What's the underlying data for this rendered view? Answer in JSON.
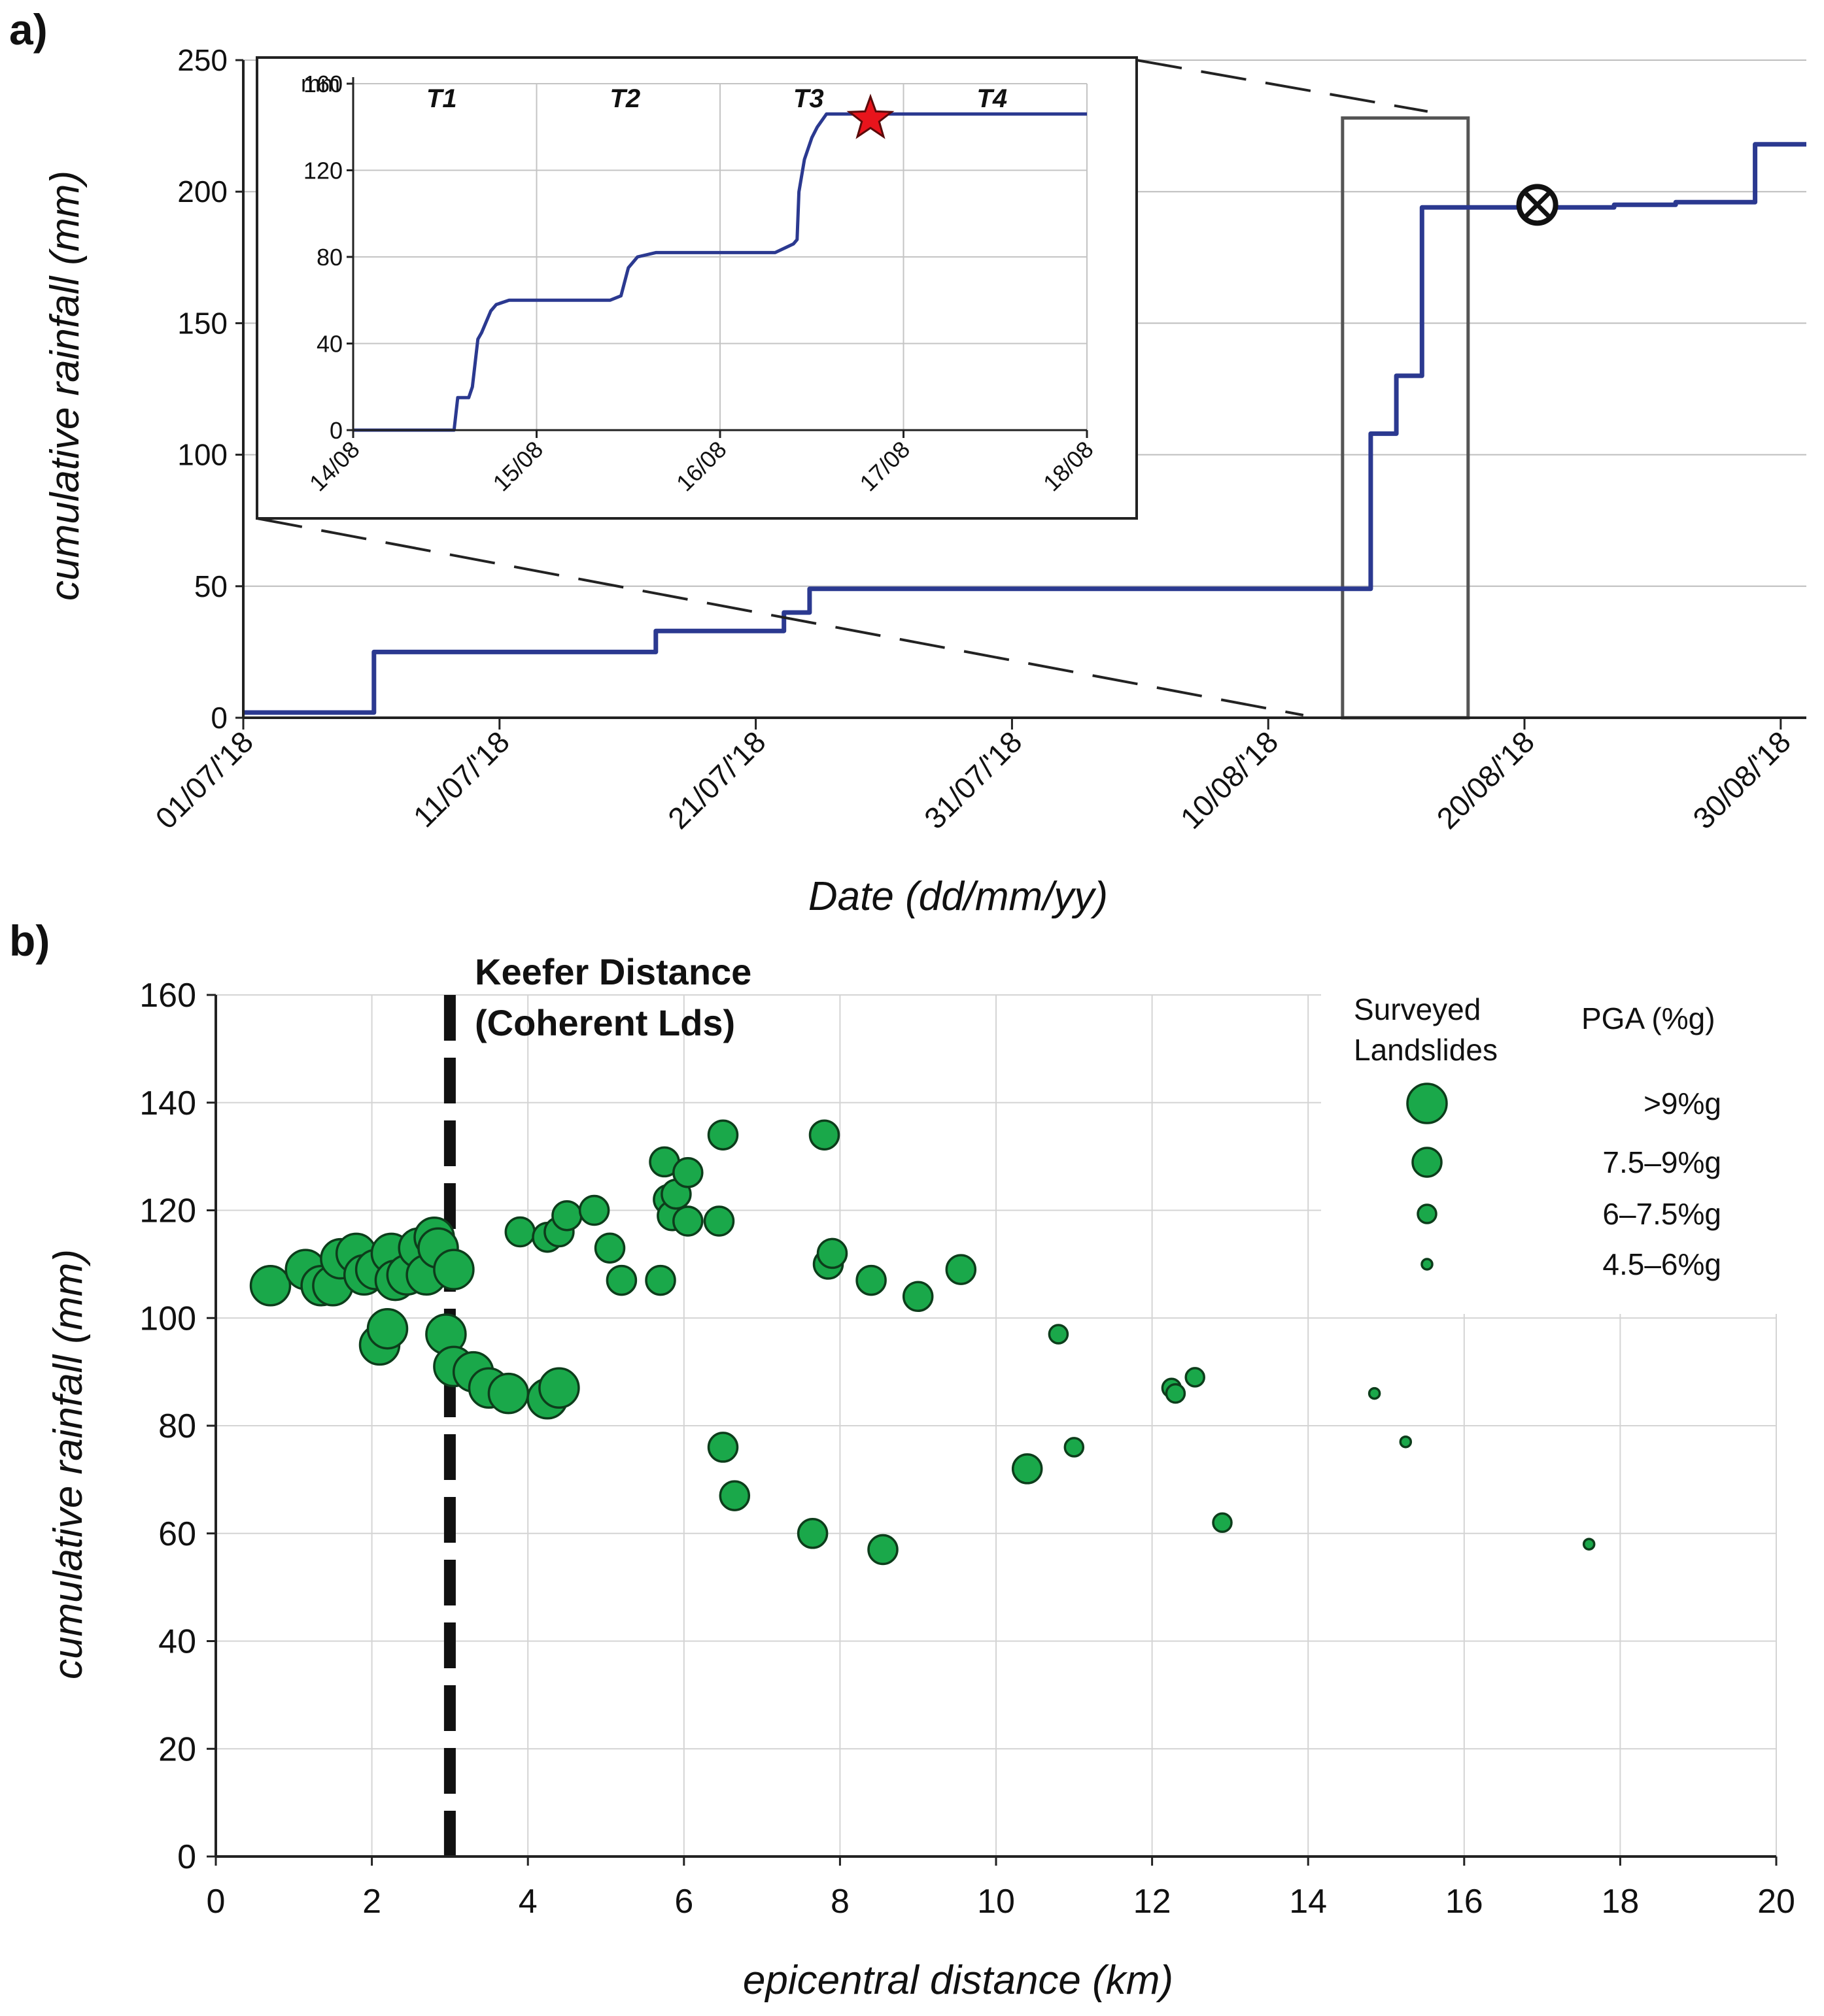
{
  "chart_data": [
    {
      "panel_label": "a)",
      "type": "line",
      "xlabel": "Date (dd/mm/yy)",
      "ylabel": "cumulative rainfall (mm)",
      "ylim": [
        0,
        250
      ],
      "yticks": [
        "0",
        "50",
        "100",
        "150",
        "200",
        "250"
      ],
      "x_range_days": [
        0,
        61
      ],
      "x_tick_days": [
        0,
        10,
        20,
        30,
        40,
        50,
        60
      ],
      "x_tick_labels": [
        "01/07/'18",
        "11/07/'18",
        "21/07/'18",
        "31/07/'18",
        "10/08/'18",
        "20/08/'18",
        "30/08/'18"
      ],
      "grid": "horizontal",
      "series": [
        {
          "name": "cumulative rainfall",
          "color": "#2b3990",
          "x": [
            0,
            5.1,
            5.1,
            16.1,
            16.1,
            21.1,
            21.1,
            22.1,
            22.1,
            44.0,
            44.0,
            45.0,
            45.0,
            46.0,
            46.0,
            53.5,
            53.5,
            55.9,
            55.9,
            59.0,
            59.0,
            61.0
          ],
          "y": [
            2,
            2,
            25,
            25,
            33,
            33,
            40,
            40,
            49,
            49,
            108,
            108,
            130,
            130,
            194,
            194,
            195,
            195,
            196,
            196,
            218,
            218
          ]
        }
      ],
      "highlight_box_days": [
        42.9,
        47.8
      ],
      "marker": {
        "symbol": "circled-x",
        "x": 50.5,
        "y": 195
      },
      "inset": {
        "ylabel": "mm",
        "ylim": [
          0,
          160
        ],
        "yticks": [
          "0",
          "40",
          "80",
          "120",
          "160"
        ],
        "x_range_days": [
          0,
          4
        ],
        "x_tick_labels": [
          "14/08",
          "15/08",
          "16/08",
          "17/08",
          "18/08"
        ],
        "periods": [
          "T1",
          "T2",
          "T3",
          "T4"
        ],
        "series": [
          {
            "name": "cumulative rainfall (zoom)",
            "color": "#2b3990",
            "x": [
              0,
              0.55,
              0.57,
              0.63,
              0.65,
              0.68,
              0.7,
              0.75,
              0.78,
              0.85,
              0.95,
              1.3,
              1.4,
              1.46,
              1.5,
              1.55,
              1.65,
              2.0,
              2.3,
              2.35,
              2.4,
              2.42,
              2.43,
              2.46,
              2.5,
              2.53,
              2.58,
              2.65,
              4.0
            ],
            "y": [
              0,
              0,
              15,
              15,
              20,
              42,
              45,
              55,
              58,
              60,
              60,
              60,
              60,
              62,
              75,
              80,
              82,
              82,
              82,
              84,
              86,
              88,
              110,
              125,
              135,
              140,
              146,
              146,
              146
            ]
          }
        ],
        "star": {
          "x": 2.82,
          "y": 145
        }
      }
    },
    {
      "panel_label": "b)",
      "type": "scatter",
      "xlabel": "epicentral distance (km)",
      "ylabel": "cumulative rainfall (mm)",
      "xlim": [
        0,
        20
      ],
      "ylim": [
        0,
        160
      ],
      "xticks": [
        "0",
        "2",
        "4",
        "6",
        "8",
        "10",
        "12",
        "14",
        "16",
        "18",
        "20"
      ],
      "yticks": [
        "0",
        "20",
        "40",
        "60",
        "80",
        "100",
        "120",
        "140",
        "160"
      ],
      "grid": "both",
      "vline": {
        "x": 3.0,
        "label_line1": "Keefer Distance",
        "label_line2": "(Coherent Lds)"
      },
      "legend": {
        "title_left_1": "Surveyed",
        "title_left_2": "Landslides",
        "title_right": "PGA (%g)",
        "entries": [
          {
            "label": ">9%g",
            "class": 4
          },
          {
            "label": "7.5–9%g",
            "class": 3
          },
          {
            "label": "6–7.5%g",
            "class": 2
          },
          {
            "label": "4.5–6%g",
            "class": 1
          }
        ]
      },
      "marker_color": "#1aa84a",
      "points": [
        {
          "x": 0.7,
          "y": 106,
          "c": 4
        },
        {
          "x": 1.15,
          "y": 109,
          "c": 4
        },
        {
          "x": 1.35,
          "y": 106,
          "c": 4
        },
        {
          "x": 1.5,
          "y": 106,
          "c": 4
        },
        {
          "x": 1.6,
          "y": 111,
          "c": 4
        },
        {
          "x": 1.8,
          "y": 112,
          "c": 4
        },
        {
          "x": 1.9,
          "y": 108,
          "c": 4
        },
        {
          "x": 2.05,
          "y": 109,
          "c": 4
        },
        {
          "x": 2.25,
          "y": 112,
          "c": 4
        },
        {
          "x": 2.3,
          "y": 107,
          "c": 4
        },
        {
          "x": 2.45,
          "y": 108,
          "c": 4
        },
        {
          "x": 2.6,
          "y": 113,
          "c": 4
        },
        {
          "x": 2.7,
          "y": 108,
          "c": 4
        },
        {
          "x": 2.8,
          "y": 115,
          "c": 4
        },
        {
          "x": 2.85,
          "y": 113,
          "c": 4
        },
        {
          "x": 3.05,
          "y": 109,
          "c": 4
        },
        {
          "x": 2.1,
          "y": 95,
          "c": 4
        },
        {
          "x": 2.2,
          "y": 98,
          "c": 4
        },
        {
          "x": 2.95,
          "y": 97,
          "c": 4
        },
        {
          "x": 3.05,
          "y": 91,
          "c": 4
        },
        {
          "x": 3.3,
          "y": 90,
          "c": 4
        },
        {
          "x": 3.5,
          "y": 87,
          "c": 4
        },
        {
          "x": 3.75,
          "y": 86,
          "c": 4
        },
        {
          "x": 4.25,
          "y": 85,
          "c": 4
        },
        {
          "x": 4.4,
          "y": 87,
          "c": 4
        },
        {
          "x": 3.9,
          "y": 116,
          "c": 3
        },
        {
          "x": 4.25,
          "y": 115,
          "c": 3
        },
        {
          "x": 4.4,
          "y": 116,
          "c": 3
        },
        {
          "x": 4.5,
          "y": 119,
          "c": 3
        },
        {
          "x": 4.85,
          "y": 120,
          "c": 3
        },
        {
          "x": 5.05,
          "y": 113,
          "c": 3
        },
        {
          "x": 5.2,
          "y": 107,
          "c": 3
        },
        {
          "x": 5.7,
          "y": 107,
          "c": 3
        },
        {
          "x": 5.75,
          "y": 129,
          "c": 3
        },
        {
          "x": 5.8,
          "y": 122,
          "c": 3
        },
        {
          "x": 5.85,
          "y": 119,
          "c": 3
        },
        {
          "x": 5.9,
          "y": 123,
          "c": 3
        },
        {
          "x": 6.05,
          "y": 127,
          "c": 3
        },
        {
          "x": 6.05,
          "y": 118,
          "c": 3
        },
        {
          "x": 6.5,
          "y": 134,
          "c": 3
        },
        {
          "x": 6.45,
          "y": 118,
          "c": 3
        },
        {
          "x": 6.5,
          "y": 76,
          "c": 3
        },
        {
          "x": 6.65,
          "y": 67,
          "c": 3
        },
        {
          "x": 7.65,
          "y": 60,
          "c": 3
        },
        {
          "x": 7.8,
          "y": 134,
          "c": 3
        },
        {
          "x": 7.85,
          "y": 110,
          "c": 3
        },
        {
          "x": 7.9,
          "y": 112,
          "c": 3
        },
        {
          "x": 8.4,
          "y": 107,
          "c": 3
        },
        {
          "x": 8.55,
          "y": 57,
          "c": 3
        },
        {
          "x": 9.0,
          "y": 104,
          "c": 3
        },
        {
          "x": 9.55,
          "y": 109,
          "c": 3
        },
        {
          "x": 10.4,
          "y": 72,
          "c": 3
        },
        {
          "x": 10.8,
          "y": 97,
          "c": 2
        },
        {
          "x": 11.0,
          "y": 76,
          "c": 2
        },
        {
          "x": 12.25,
          "y": 87,
          "c": 2
        },
        {
          "x": 12.3,
          "y": 86,
          "c": 2
        },
        {
          "x": 12.55,
          "y": 89,
          "c": 2
        },
        {
          "x": 12.9,
          "y": 62,
          "c": 2
        },
        {
          "x": 14.85,
          "y": 86,
          "c": 1
        },
        {
          "x": 15.25,
          "y": 77,
          "c": 1
        },
        {
          "x": 17.6,
          "y": 58,
          "c": 1
        }
      ]
    }
  ]
}
